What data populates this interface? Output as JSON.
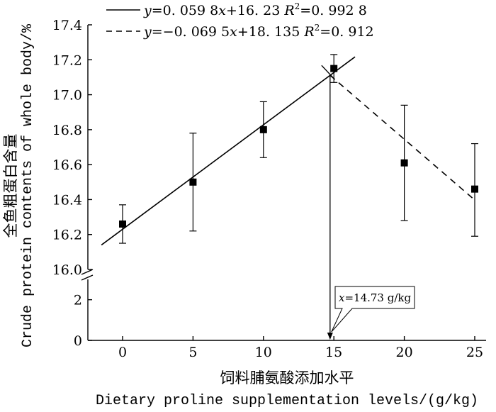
{
  "chart_data": {
    "type": "scatter",
    "title": "",
    "xlabel_cn": "饲料脯氨酸添加水平",
    "xlabel_en": "Dietary proline supplementation levels/(g/kg)",
    "ylabel_cn": "全鱼粗蛋白含量",
    "ylabel_en": "Crude protein contents of whole body/%",
    "x_ticks": [
      "0",
      "5",
      "10",
      "15",
      "20",
      "25"
    ],
    "y_ticks_upper": [
      "16.0",
      "16.2",
      "16.4",
      "16.6",
      "16.8",
      "17.0",
      "17.2",
      "17.4"
    ],
    "y_ticks_lower": [
      "0",
      "2"
    ],
    "xlim": [
      -2.5,
      26
    ],
    "ylim_upper": [
      16.0,
      17.4
    ],
    "ylim_lower": [
      0,
      3
    ],
    "axis_break": true,
    "series": [
      {
        "name": "measured",
        "marker": "square",
        "x": [
          0,
          5,
          10,
          15,
          20,
          25
        ],
        "y": [
          16.26,
          16.5,
          16.8,
          17.15,
          16.61,
          16.46
        ],
        "error_low": [
          16.15,
          16.22,
          16.64,
          17.07,
          16.28,
          16.19
        ],
        "error_high": [
          16.37,
          16.78,
          16.96,
          17.23,
          16.94,
          16.72
        ]
      }
    ],
    "fits": [
      {
        "name": "linear-increase",
        "style": "solid",
        "slope": 0.0598,
        "intercept": 16.23,
        "x_range": [
          -1.5,
          16.5
        ],
        "eq_y": "y",
        "eq_body": "=0. 059 8",
        "eq_x": "x",
        "eq_rest": "+16. 23 ",
        "r2_label": "R",
        "r2_exp": "2",
        "r2_value": "=0. 992 8"
      },
      {
        "name": "linear-decrease",
        "style": "dashed",
        "slope": -0.0695,
        "intercept": 18.135,
        "x_range": [
          14.73,
          25
        ],
        "eq_y": "y",
        "eq_body": "=−0. 069 5",
        "eq_x": "x",
        "eq_rest": "+18. 135 ",
        "r2_label": "R",
        "r2_exp": "2",
        "r2_value": "=0. 912"
      }
    ],
    "breakpoint": {
      "x": 14.73,
      "label_var": "x",
      "label_value": "=14.73 g/kg"
    }
  }
}
